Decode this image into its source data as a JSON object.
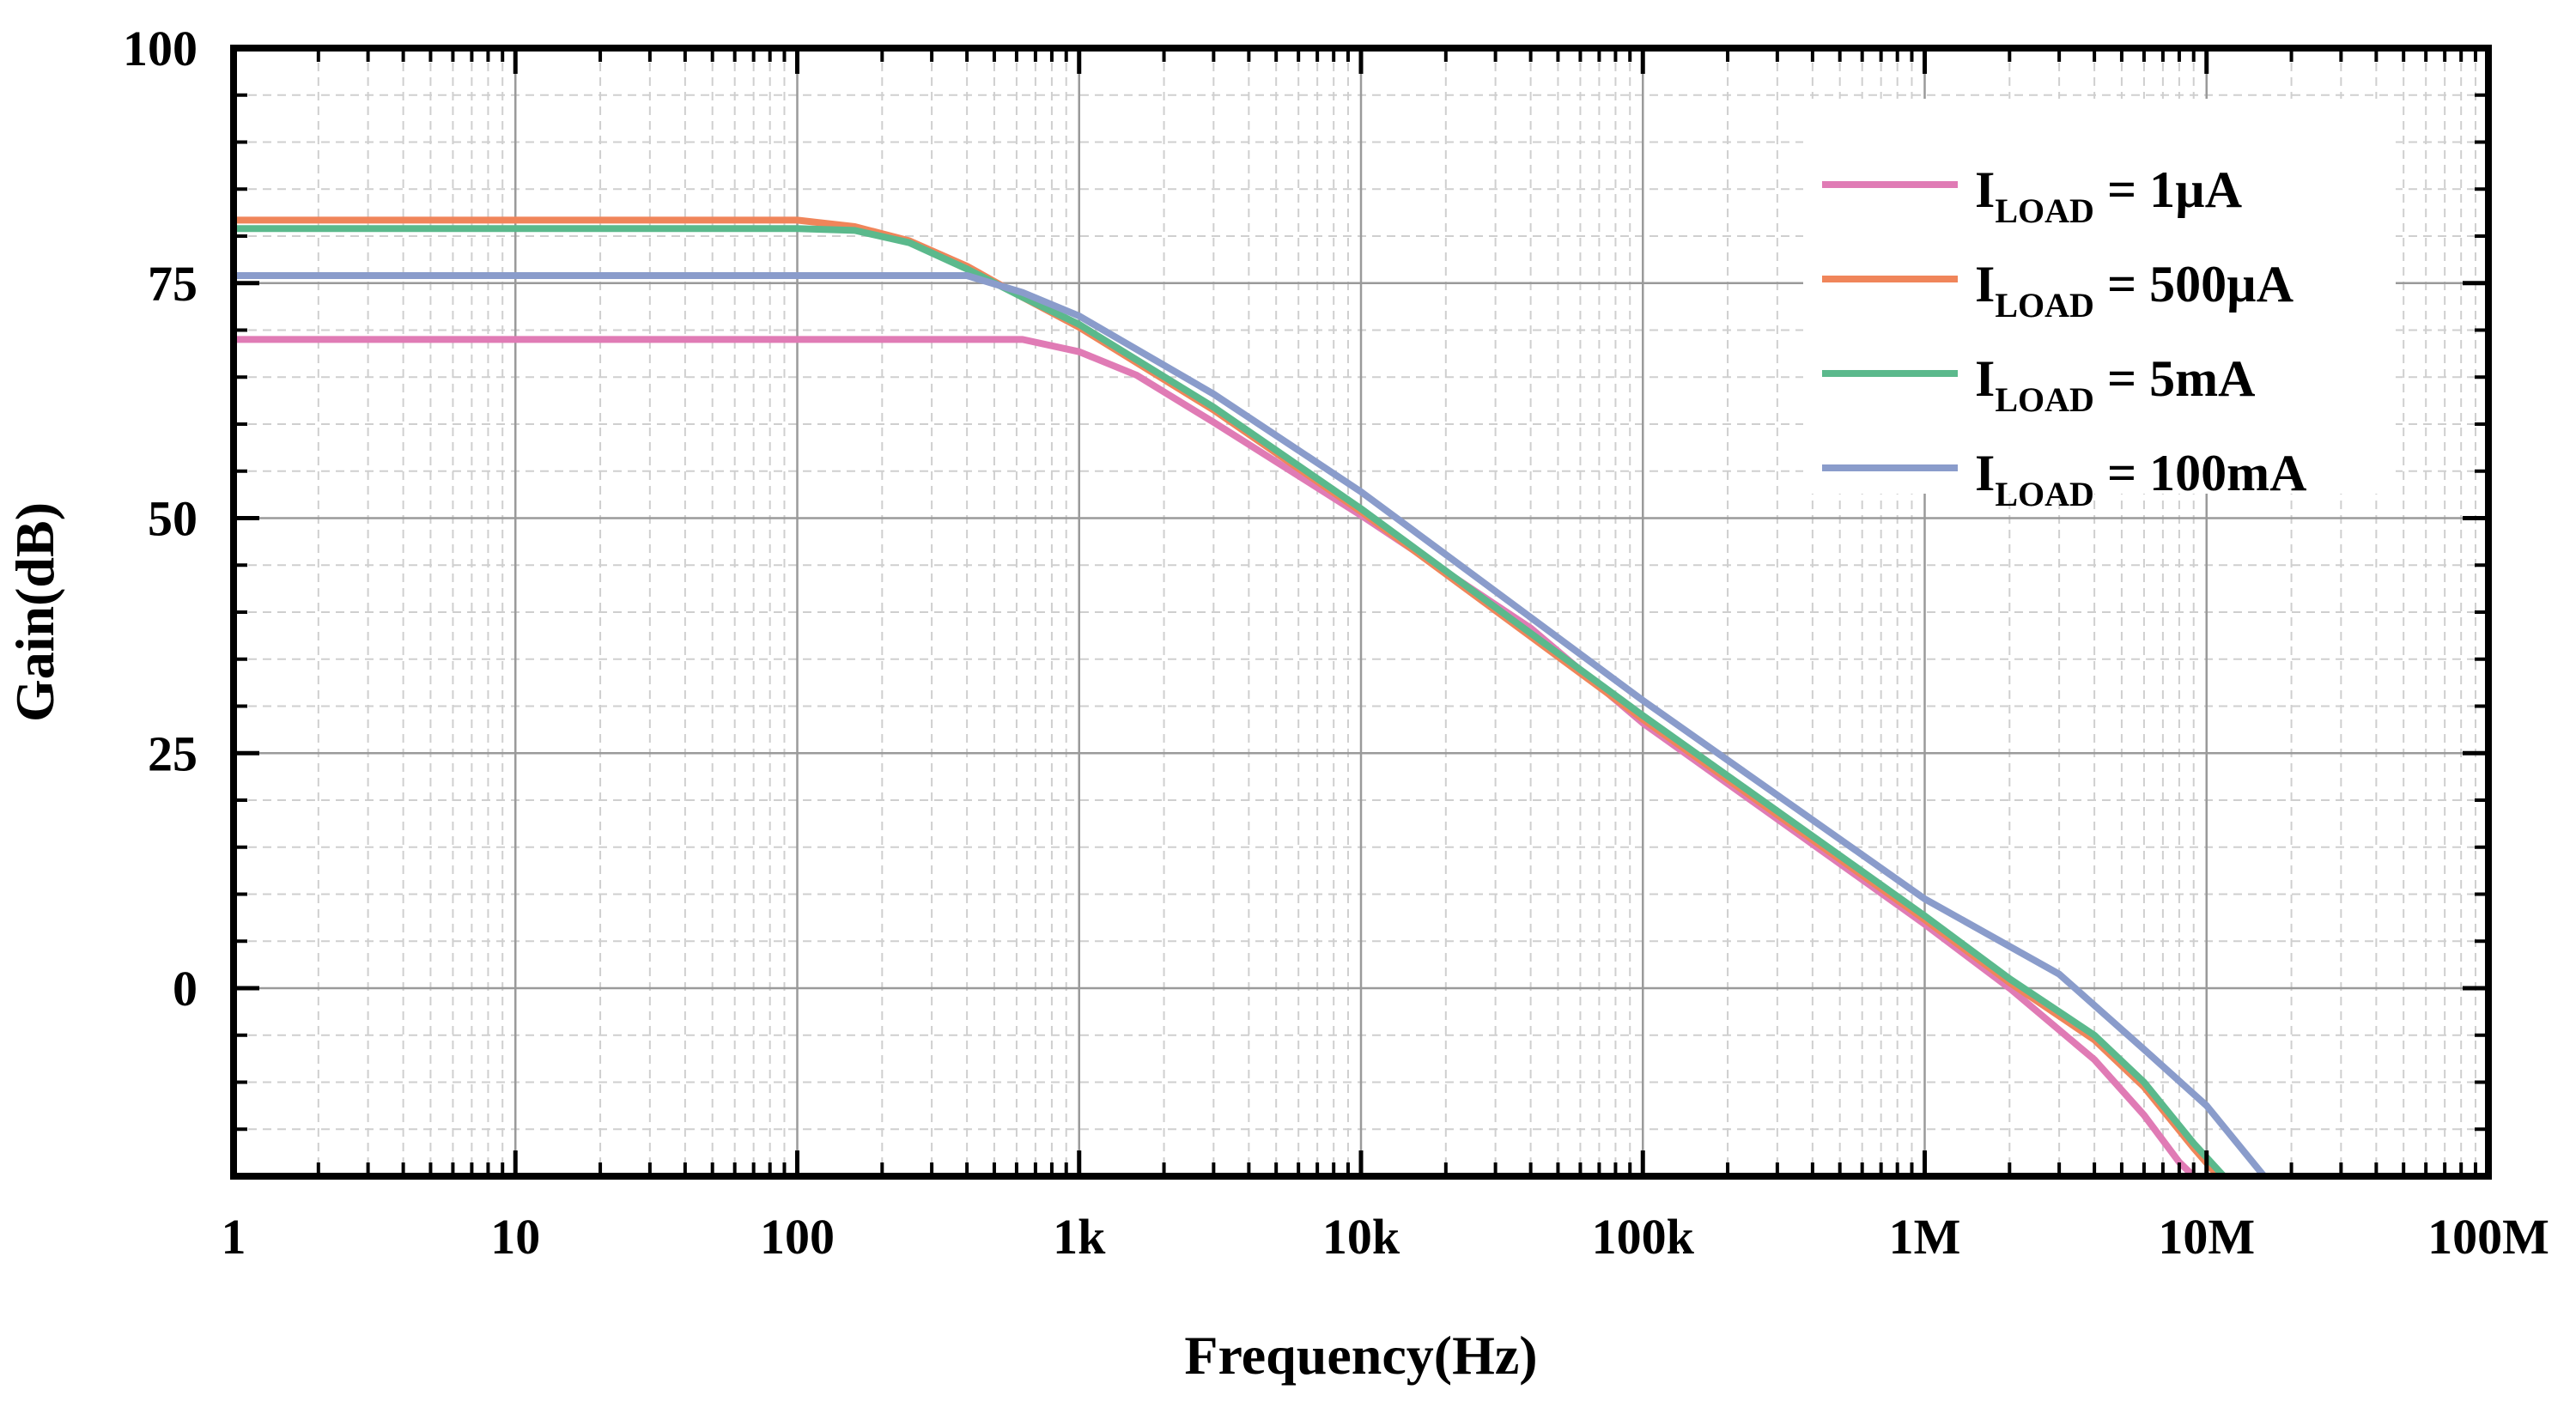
{
  "chart_data": {
    "type": "line",
    "title": "",
    "xlabel": "Frequency(Hz)",
    "ylabel": "Gain(dB)",
    "x_scale": "log",
    "xlim": [
      1,
      100000000
    ],
    "ylim": [
      -20,
      100
    ],
    "x_ticks": [
      {
        "value": 1,
        "label": "1"
      },
      {
        "value": 10,
        "label": "10"
      },
      {
        "value": 100,
        "label": "100"
      },
      {
        "value": 1000,
        "label": "1k"
      },
      {
        "value": 10000,
        "label": "10k"
      },
      {
        "value": 100000,
        "label": "100k"
      },
      {
        "value": 1000000,
        "label": "1M"
      },
      {
        "value": 10000000,
        "label": "10M"
      },
      {
        "value": 100000000,
        "label": "100M"
      }
    ],
    "y_ticks": [
      {
        "value": 0,
        "label": "0"
      },
      {
        "value": 25,
        "label": "25"
      },
      {
        "value": 50,
        "label": "50"
      },
      {
        "value": 75,
        "label": "75"
      },
      {
        "value": 100,
        "label": "100"
      }
    ],
    "grid": true,
    "legend_position": "top-right",
    "series": [
      {
        "name": "I_LOAD = 1µA",
        "legend_main": "I",
        "legend_sub": "LOAD",
        "legend_rest": " = 1µA",
        "color": "#E07BB5",
        "points": [
          [
            1,
            69.0
          ],
          [
            100,
            69.0
          ],
          [
            630,
            69.0
          ],
          [
            1000,
            67.7
          ],
          [
            1600,
            65.2
          ],
          [
            3000,
            60.2
          ],
          [
            10000,
            50.3
          ],
          [
            40000,
            38.3
          ],
          [
            100000,
            28.2
          ],
          [
            1000000,
            6.8
          ],
          [
            2000000,
            0.0
          ],
          [
            4000000,
            -7.6
          ],
          [
            6000000,
            -13.5
          ],
          [
            8000000,
            -18.5
          ],
          [
            9000000,
            -20.0
          ]
        ]
      },
      {
        "name": "I_LOAD = 500µA",
        "legend_main": "I",
        "legend_sub": "LOAD",
        "legend_rest": " = 500µA",
        "color": "#F0855A",
        "points": [
          [
            1,
            81.7
          ],
          [
            100,
            81.7
          ],
          [
            160,
            81.0
          ],
          [
            250,
            79.5
          ],
          [
            400,
            76.8
          ],
          [
            630,
            73.5
          ],
          [
            1000,
            70.3
          ],
          [
            3000,
            61.5
          ],
          [
            10000,
            50.7
          ],
          [
            100000,
            28.6
          ],
          [
            1000000,
            7.3
          ],
          [
            2000000,
            0.6
          ],
          [
            4000000,
            -5.5
          ],
          [
            6000000,
            -10.5
          ],
          [
            9000000,
            -17.0
          ],
          [
            11000000,
            -20.0
          ]
        ]
      },
      {
        "name": "I_LOAD = 5mA",
        "legend_main": "I",
        "legend_sub": "LOAD",
        "legend_rest": " = 5mA",
        "color": "#5BB98C",
        "points": [
          [
            1,
            80.8
          ],
          [
            100,
            80.8
          ],
          [
            160,
            80.6
          ],
          [
            250,
            79.3
          ],
          [
            400,
            76.5
          ],
          [
            630,
            73.5
          ],
          [
            1000,
            70.6
          ],
          [
            3000,
            61.8
          ],
          [
            10000,
            51.0
          ],
          [
            100000,
            29.0
          ],
          [
            1000000,
            7.7
          ],
          [
            2000000,
            1.0
          ],
          [
            4000000,
            -5.0
          ],
          [
            6000000,
            -10.0
          ],
          [
            9000000,
            -16.5
          ],
          [
            11500000,
            -20.0
          ]
        ]
      },
      {
        "name": "I_LOAD = 100mA",
        "legend_main": "I",
        "legend_sub": "LOAD",
        "legend_rest": " = 100mA",
        "color": "#8A9CCB",
        "points": [
          [
            1,
            75.8
          ],
          [
            100,
            75.8
          ],
          [
            400,
            75.8
          ],
          [
            630,
            74.0
          ],
          [
            1000,
            71.5
          ],
          [
            3000,
            63.2
          ],
          [
            10000,
            52.8
          ],
          [
            100000,
            30.6
          ],
          [
            1000000,
            9.5
          ],
          [
            3000000,
            1.5
          ],
          [
            6000000,
            -6.5
          ],
          [
            10000000,
            -12.5
          ],
          [
            16000000,
            -20.0
          ]
        ]
      }
    ]
  }
}
